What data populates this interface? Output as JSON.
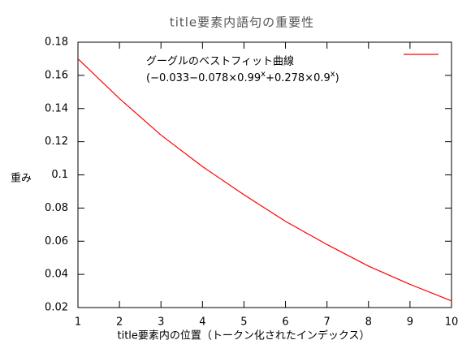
{
  "chart_data": {
    "type": "line",
    "title": "title要素内語句の重要性",
    "x_label": "title要素内の位置（トークン化されたインデックス）",
    "y_label": "重み",
    "x": [
      1,
      2,
      3,
      4,
      5,
      6,
      7,
      8,
      9,
      10
    ],
    "series": [
      {
        "name": "グーグルのベストフィット曲線",
        "color": "#ff0000",
        "values": [
          0.17,
          0.146,
          0.124,
          0.105,
          0.088,
          0.072,
          0.058,
          0.045,
          0.034,
          0.024
        ]
      }
    ],
    "annotation": [
      {
        "text": "(−0.033−0.078×0.99"
      },
      {
        "text": "x",
        "superscript": true
      },
      {
        "text": "+0.278×0.9"
      },
      {
        "text": "x",
        "superscript": true
      },
      {
        "text": ")"
      }
    ],
    "xlim": [
      1,
      10
    ],
    "xticks": [
      1,
      2,
      3,
      4,
      5,
      6,
      7,
      8,
      9,
      10
    ],
    "ylim": [
      0.02,
      0.18
    ],
    "yticks": [
      0.02,
      0.04,
      0.06,
      0.08,
      0.1,
      0.12,
      0.14,
      0.16,
      0.18
    ],
    "grid": false,
    "legend": "top-right"
  }
}
